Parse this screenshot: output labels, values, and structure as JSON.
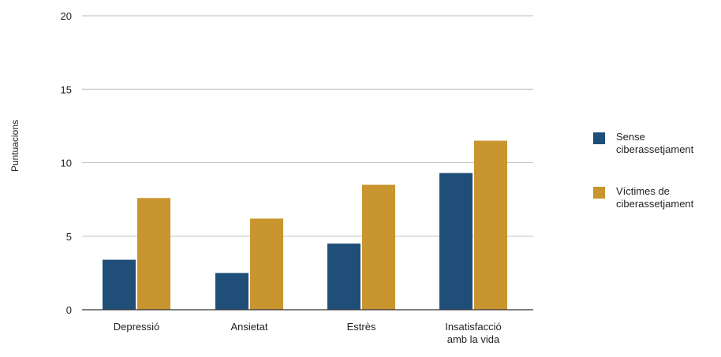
{
  "chart_data": {
    "type": "bar",
    "ylabel": "Puntuacions",
    "ylim": [
      0,
      20
    ],
    "yticks": [
      0,
      5,
      10,
      15,
      20
    ],
    "grid": true,
    "legend_position": "right",
    "categories": [
      [
        "Depressió"
      ],
      [
        "Ansietat"
      ],
      [
        "Estrès"
      ],
      [
        "Insatisfacció",
        "amb la vida"
      ]
    ],
    "series": [
      {
        "name": [
          "Sense",
          "ciberassetjament"
        ],
        "color": "#1f4e79",
        "values": [
          3.4,
          2.5,
          4.5,
          9.3
        ]
      },
      {
        "name": [
          "Víctimes de",
          "ciberassetjament"
        ],
        "color": "#c8952f",
        "values": [
          7.6,
          6.2,
          8.5,
          11.5
        ]
      }
    ]
  }
}
